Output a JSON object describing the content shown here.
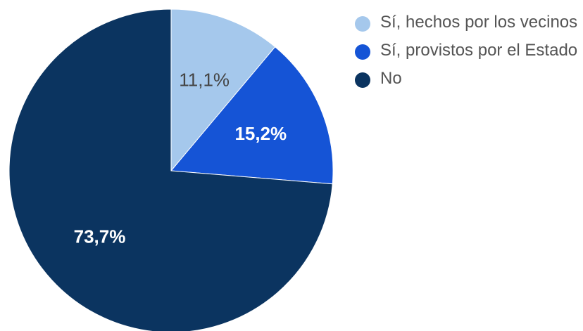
{
  "chart_data": {
    "type": "pie",
    "slices": [
      {
        "name": "Sí, hechos por los vecinos",
        "value": 11.1,
        "label": "11,1%",
        "color": "#a5c8ec",
        "label_color": "#444444"
      },
      {
        "name": "Sí, provistos por el Estado",
        "value": 15.2,
        "label": "15,2%",
        "color": "#1554d6",
        "label_color": "#ffffff"
      },
      {
        "name": "No",
        "value": 73.7,
        "label": "73,7%",
        "color": "#0b3460",
        "label_color": "#ffffff"
      }
    ],
    "start_angle_deg": 0,
    "direction": "clockwise",
    "legend_position": "right"
  }
}
